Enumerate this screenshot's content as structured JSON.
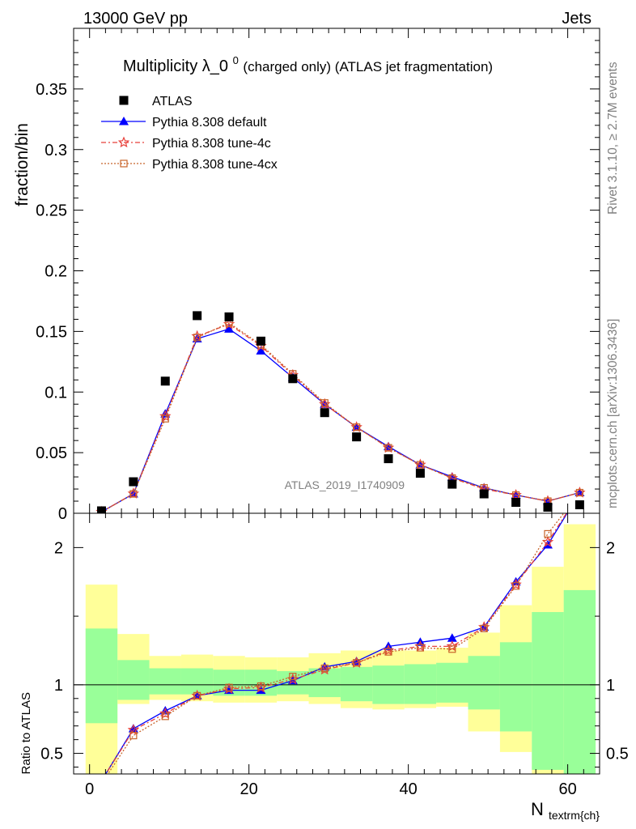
{
  "header": {
    "left": "13000 GeV pp",
    "right": "Jets"
  },
  "side": {
    "top": "Rivet 3.1.10, ≥ 2.7M events",
    "bottom": "mcplots.cern.ch [arXiv:1306.3436]"
  },
  "plot": {
    "title_main": "Multiplicity λ_0",
    "title_sup": "0",
    "title_rest": " (charged only) (ATLAS jet fragmentation)",
    "ylabel_top": "fraction/bin",
    "ylabel_bottom": "Ratio to ATLAS",
    "xlabel_main": "N",
    "xlabel_sub": "textrm{ch}",
    "watermark": "ATLAS_2019_I1740909"
  },
  "colors": {
    "atlas": "#000000",
    "default": "#0000ff",
    "tune4c": "#e8403a",
    "tune4cx": "#c8642a",
    "band_inner": "#99ff99",
    "band_outer": "#ffff99"
  },
  "chart_data": {
    "type": "line",
    "x": [
      1.5,
      5.5,
      9.5,
      13.5,
      17.5,
      21.5,
      25.5,
      29.5,
      33.5,
      37.5,
      41.5,
      45.5,
      49.5,
      53.5,
      57.5,
      61.5
    ],
    "bin_edges": [
      -0.5,
      3.5,
      7.5,
      11.5,
      15.5,
      19.5,
      23.5,
      27.5,
      31.5,
      35.5,
      39.5,
      43.5,
      47.5,
      51.5,
      55.5,
      59.5,
      63.5
    ],
    "xlim": [
      -2,
      64
    ],
    "xticks": [
      0,
      20,
      40,
      60
    ],
    "top": {
      "ylim": [
        0,
        0.4
      ],
      "yticks": [
        0,
        0.05,
        0.1,
        0.15,
        0.2,
        0.25,
        0.3,
        0.35
      ],
      "ytick_labels": [
        "0",
        "0.05",
        "0.1",
        "0.15",
        "0.2",
        "0.25",
        "0.3",
        "0.35"
      ]
    },
    "bottom": {
      "ylim": [
        0.35,
        2.25
      ],
      "yticks": [
        0.5,
        1,
        2
      ],
      "ytick_labels": [
        "0.5",
        "1",
        "2"
      ]
    },
    "series": [
      {
        "name": "ATLAS",
        "marker": "square",
        "values": [
          0.002,
          0.026,
          0.109,
          0.163,
          0.162,
          0.142,
          0.111,
          0.083,
          0.063,
          0.045,
          0.033,
          0.024,
          0.016,
          0.009,
          0.005,
          0.007
        ]
      },
      {
        "name": "Pythia 8.308 default",
        "marker": "triangle",
        "values": [
          0.0012,
          0.016,
          0.082,
          0.144,
          0.152,
          0.134,
          0.112,
          0.09,
          0.071,
          0.055,
          0.04,
          0.03,
          0.021,
          0.015,
          0.01,
          0.017
        ],
        "ratio": [
          0.3,
          0.68,
          0.81,
          0.92,
          0.96,
          0.96,
          1.03,
          1.13,
          1.17,
          1.28,
          1.31,
          1.34,
          1.42,
          1.75,
          2.02,
          2.4
        ]
      },
      {
        "name": "Pythia 8.308 tune-4c",
        "marker": "star",
        "values": [
          0.0011,
          0.0162,
          0.08,
          0.146,
          0.156,
          0.138,
          0.114,
          0.09,
          0.071,
          0.054,
          0.04,
          0.029,
          0.02,
          0.015,
          0.01,
          0.017
        ],
        "ratio": [
          0.3,
          0.67,
          0.79,
          0.92,
          0.97,
          0.98,
          1.04,
          1.11,
          1.16,
          1.25,
          1.28,
          1.28,
          1.42,
          1.73,
          2.04,
          2.4
        ]
      },
      {
        "name": "Pythia 8.308 tune-4cx",
        "marker": "open-square",
        "values": [
          0.0011,
          0.016,
          0.078,
          0.145,
          0.157,
          0.139,
          0.115,
          0.091,
          0.071,
          0.054,
          0.04,
          0.029,
          0.021,
          0.015,
          0.01,
          0.017
        ],
        "ratio": [
          0.28,
          0.63,
          0.77,
          0.92,
          0.98,
          0.99,
          1.06,
          1.12,
          1.16,
          1.24,
          1.27,
          1.26,
          1.41,
          1.72,
          2.1,
          2.4
        ]
      }
    ],
    "uncertainty_band": {
      "inner": {
        "lo": [
          0.72,
          0.89,
          0.93,
          0.93,
          0.92,
          0.92,
          0.93,
          0.91,
          0.88,
          0.86,
          0.86,
          0.87,
          0.82,
          0.66,
          0.38,
          0.33
        ],
        "hi": [
          1.41,
          1.18,
          1.12,
          1.12,
          1.11,
          1.11,
          1.1,
          1.12,
          1.13,
          1.14,
          1.15,
          1.16,
          1.21,
          1.31,
          1.53,
          1.69
        ]
      },
      "outer": {
        "lo": [
          0.33,
          0.86,
          0.89,
          0.88,
          0.87,
          0.87,
          0.88,
          0.86,
          0.83,
          0.82,
          0.83,
          0.84,
          0.66,
          0.51,
          0.33,
          0.33
        ],
        "hi": [
          1.73,
          1.37,
          1.21,
          1.22,
          1.21,
          1.2,
          1.2,
          1.23,
          1.25,
          1.25,
          1.25,
          1.27,
          1.38,
          1.58,
          1.86,
          2.17
        ]
      }
    }
  }
}
